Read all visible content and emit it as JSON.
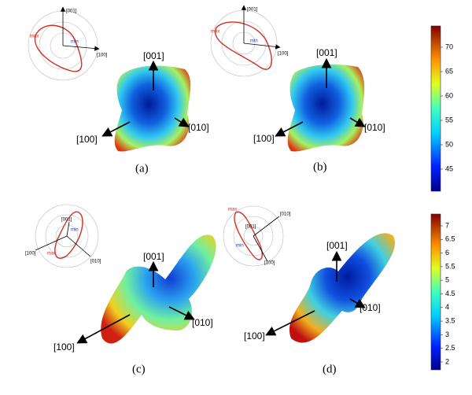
{
  "panels": [
    {
      "label": "(a)",
      "directions": [
        "[001]",
        "[100]",
        "[010]"
      ],
      "polar": [
        "max",
        "min",
        "[001]",
        "[100]"
      ]
    },
    {
      "label": "(b)",
      "directions": [
        "[001]",
        "[100]",
        "[010]"
      ],
      "polar": [
        "max",
        "min",
        "[001]",
        "[100]"
      ]
    },
    {
      "label": "(c)",
      "directions": [
        "[001]",
        "[100]",
        "[010]"
      ],
      "polar": [
        "max",
        "min",
        "[001]",
        "[100]",
        "[010]"
      ]
    },
    {
      "label": "(d)",
      "directions": [
        "[001]",
        "[100]",
        "[010]"
      ],
      "polar": [
        "max",
        "min",
        "[001]",
        "[100]",
        "[010]"
      ]
    }
  ],
  "colorbars": [
    {
      "ticks": [
        70,
        65,
        60,
        55,
        50,
        45
      ]
    },
    {
      "ticks": [
        7,
        6.5,
        6,
        5.5,
        5,
        4.5,
        4,
        3.5,
        3,
        2.5,
        2
      ]
    }
  ]
}
